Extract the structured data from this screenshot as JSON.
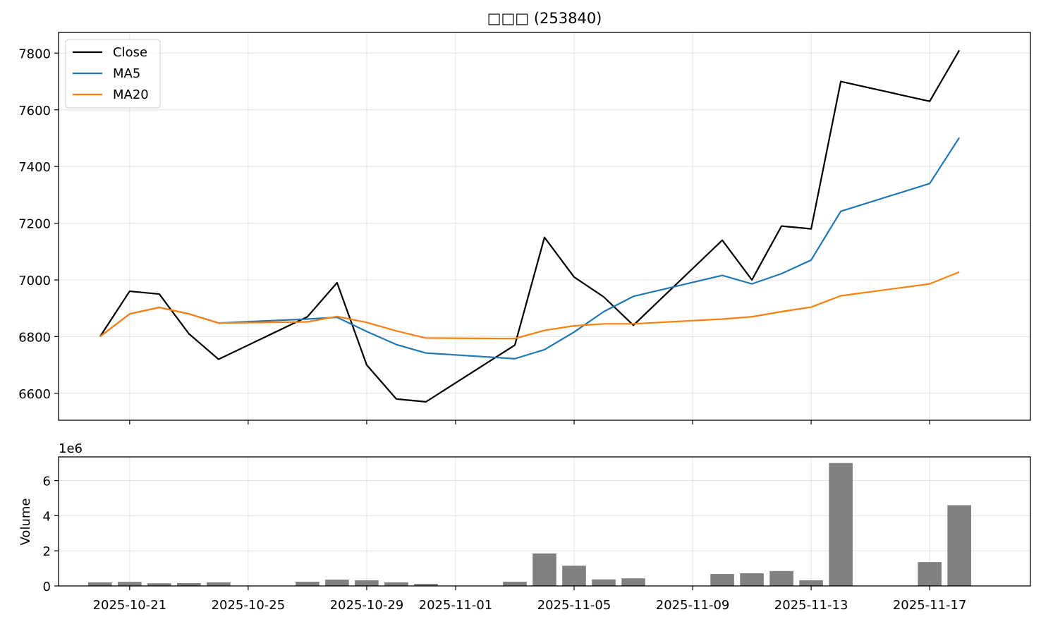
{
  "chart_data": [
    {
      "type": "line",
      "title": "□□□ (253840)",
      "x": [
        "2025-10-20",
        "2025-10-21",
        "2025-10-22",
        "2025-10-23",
        "2025-10-24",
        "2025-10-27",
        "2025-10-28",
        "2025-10-29",
        "2025-10-30",
        "2025-10-31",
        "2025-11-03",
        "2025-11-04",
        "2025-11-05",
        "2025-11-06",
        "2025-11-07",
        "2025-11-10",
        "2025-11-11",
        "2025-11-12",
        "2025-11-13",
        "2025-11-14",
        "2025-11-17",
        "2025-11-18"
      ],
      "series": [
        {
          "name": "Close",
          "color": "#000000",
          "values": [
            6800,
            6960,
            6950,
            6810,
            6720,
            6870,
            6990,
            6700,
            6580,
            6570,
            6770,
            7150,
            7010,
            6940,
            6840,
            7140,
            7000,
            7190,
            7180,
            7700,
            7630,
            7810
          ]
        },
        {
          "name": "MA5",
          "color": "#1f77b4",
          "values": [
            6800,
            6880,
            6903,
            6880,
            6848,
            6862,
            6868,
            6818,
            6772,
            6742,
            6722,
            6754,
            6816,
            6888,
            6942,
            7016,
            6986,
            7022,
            7070,
            7242,
            7340,
            7502
          ]
        },
        {
          "name": "MA20",
          "color": "#ff7f0e",
          "values": [
            6800,
            6880,
            6903,
            6880,
            6848,
            6852,
            6871,
            6850,
            6820,
            6795,
            6793,
            6822,
            6838,
            6845,
            6845,
            6862,
            6870,
            6888,
            6904,
            6944,
            6986,
            7028
          ]
        }
      ],
      "yticks": [
        6600,
        6800,
        7000,
        7200,
        7400,
        7600,
        7800
      ],
      "ylim": [
        6505,
        7873
      ],
      "xlabel": "",
      "ylabel": "",
      "grid": true,
      "legend": "upper-left"
    },
    {
      "type": "bar",
      "x": [
        "2025-10-20",
        "2025-10-21",
        "2025-10-22",
        "2025-10-23",
        "2025-10-24",
        "2025-10-27",
        "2025-10-28",
        "2025-10-29",
        "2025-10-30",
        "2025-10-31",
        "2025-11-03",
        "2025-11-04",
        "2025-11-05",
        "2025-11-06",
        "2025-11-07",
        "2025-11-10",
        "2025-11-11",
        "2025-11-12",
        "2025-11-13",
        "2025-11-14",
        "2025-11-17",
        "2025-11-18"
      ],
      "values": [
        200000,
        230000,
        150000,
        160000,
        200000,
        240000,
        360000,
        320000,
        200000,
        120000,
        240000,
        1850000,
        1150000,
        370000,
        430000,
        680000,
        720000,
        850000,
        320000,
        7000000,
        1360000,
        4600000
      ],
      "ylabel": "Volume",
      "offset_label": "1e6",
      "yticks": [
        0,
        2,
        4,
        6
      ],
      "ylim": [
        0,
        7350000
      ],
      "color": "#808080",
      "grid": true
    }
  ],
  "xaxis": {
    "ticks": [
      "2025-10-21",
      "2025-10-25",
      "2025-10-29",
      "2025-11-01",
      "2025-11-05",
      "2025-11-09",
      "2025-11-13",
      "2025-11-17"
    ],
    "xlim": [
      "2025-10-18T14:24",
      "2025-11-20T09:36"
    ]
  }
}
